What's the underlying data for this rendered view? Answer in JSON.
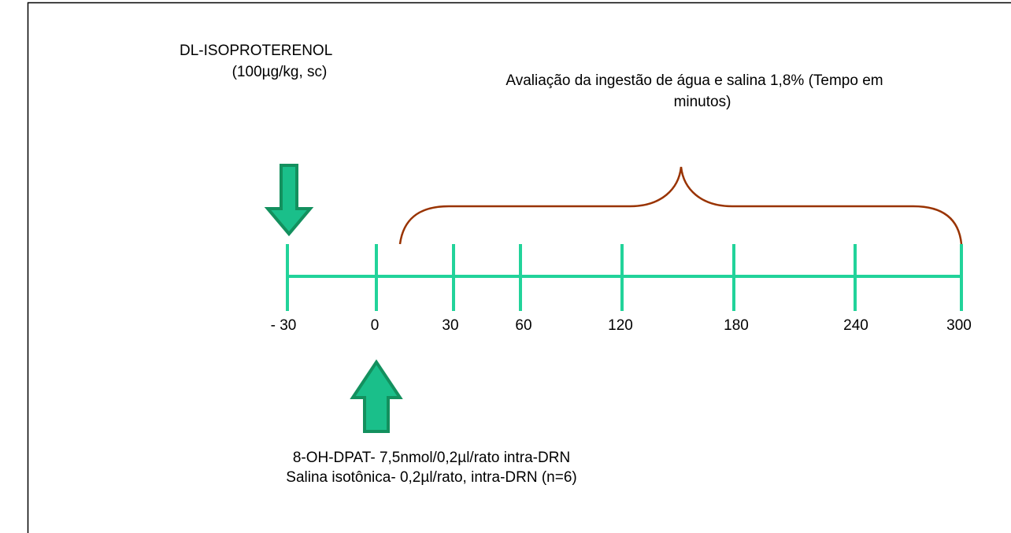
{
  "top_label": {
    "lines": [
      "DL-ISOPROTERENOL",
      "(100µg/kg, sc)"
    ]
  },
  "period_label": {
    "lines": [
      "Avaliação da ingestão de água e salina 1,8% (Tempo em",
      "minutos)"
    ]
  },
  "timeline": {
    "ticks": [
      "- 30",
      "0",
      "30",
      "60",
      "120",
      "180",
      "240",
      "300"
    ]
  },
  "bottom_label": {
    "lines": [
      "8-OH-DPAT- 7,5nmol/0,2µl/rato intra-DRN",
      "Salina isotônica- 0,2µl/rato, intra-DRN (n=6)"
    ]
  }
}
